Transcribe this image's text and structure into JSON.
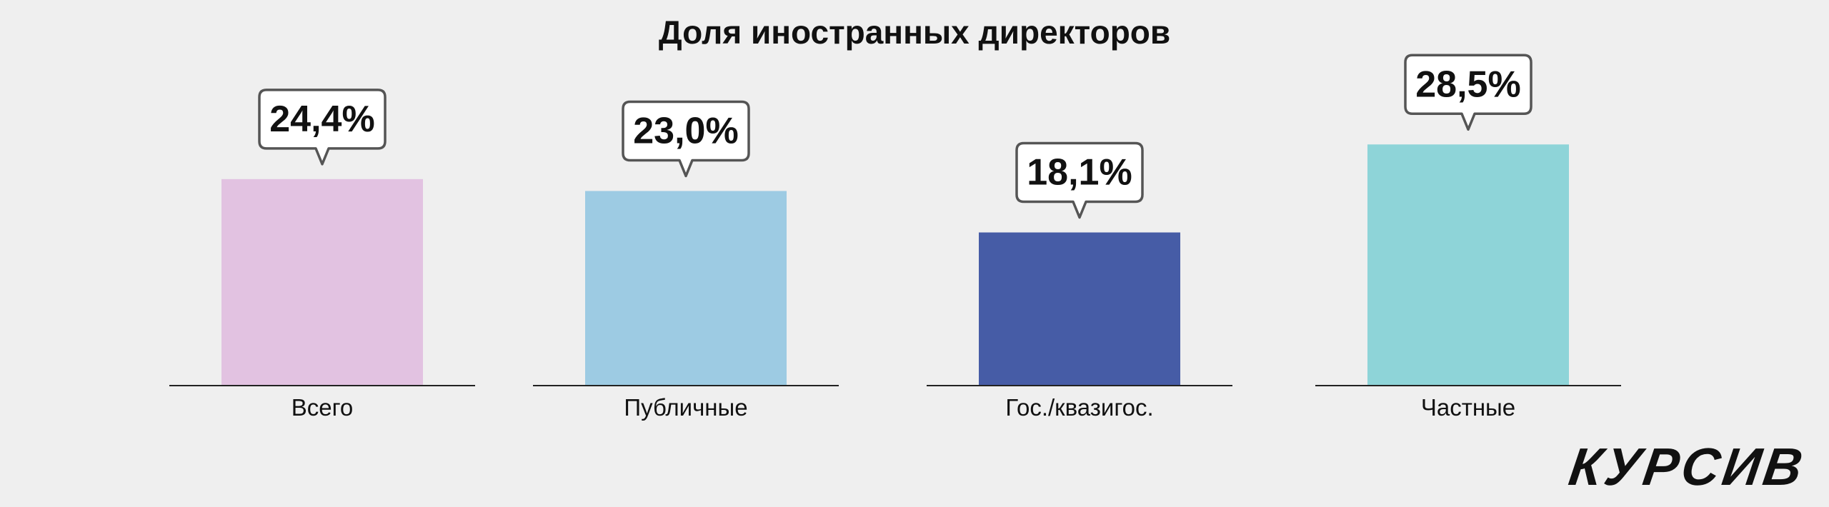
{
  "chart_data": {
    "type": "bar",
    "title": "Доля иностранных директоров",
    "categories": [
      "Всего",
      "Публичные",
      "Гос./квазигос.",
      "Частные"
    ],
    "values": [
      24.4,
      23.0,
      18.1,
      28.5
    ],
    "value_labels": [
      "24,4%",
      "23,0%",
      "18,1%",
      "28,5%"
    ],
    "colors": [
      "#e2c2e1",
      "#9dcbe3",
      "#465ca6",
      "#8ed4d8"
    ],
    "ylim": [
      0,
      40
    ]
  },
  "brand": {
    "logo_text": "КУРСИВ"
  }
}
